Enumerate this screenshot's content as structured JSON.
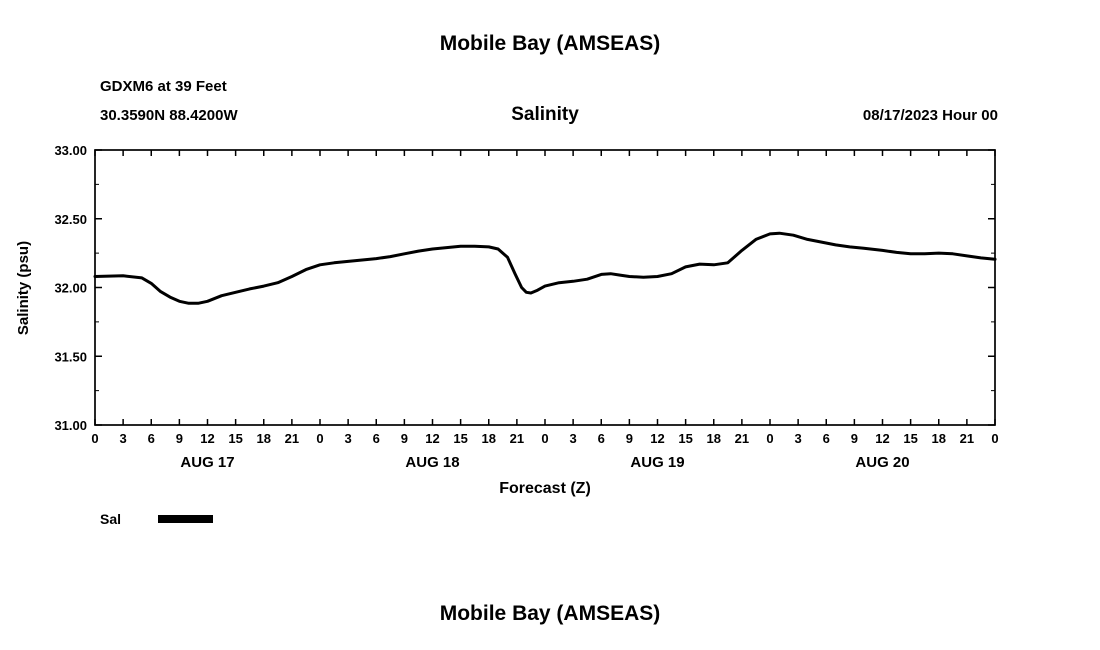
{
  "page": {
    "title_top": "Mobile Bay (AMSEAS)",
    "title_bottom": "Mobile Bay (AMSEAS)"
  },
  "station": {
    "name_line": "GDXM6 at 39 Feet",
    "coords_line": "30.3590N  88.4200W"
  },
  "chart_header": {
    "subtitle": "Salinity",
    "datetime": "08/17/2023 Hour 00"
  },
  "chart_data": {
    "type": "line",
    "title": "Salinity",
    "xlabel": "Forecast (Z)",
    "ylabel": "Salinity (psu)",
    "xlim": [
      0,
      96
    ],
    "ylim": [
      31.0,
      33.0
    ],
    "grid": false,
    "legend_position": "bottom-left",
    "xtick_step": 3,
    "xtick_label_mod": 24,
    "yticks": {
      "values": [
        31.0,
        31.5,
        32.0,
        32.5,
        33.0
      ],
      "labels": [
        "31.00",
        "31.50",
        "32.00",
        "32.50",
        "33.00"
      ]
    },
    "ytick_minor_values": [
      31.25,
      31.75,
      32.25,
      32.75
    ],
    "day_labels": [
      {
        "label": "AUG 17",
        "hour": 12
      },
      {
        "label": "AUG 18",
        "hour": 36
      },
      {
        "label": "AUG 19",
        "hour": 60
      },
      {
        "label": "AUG 20",
        "hour": 84
      }
    ],
    "legend": {
      "label": "Sal",
      "color": "#000000",
      "line_thickness": 8
    },
    "series": [
      {
        "name": "Sal",
        "color": "#000000",
        "points": [
          [
            0,
            32.08
          ],
          [
            3,
            32.085
          ],
          [
            5,
            32.07
          ],
          [
            6,
            32.03
          ],
          [
            7,
            31.97
          ],
          [
            8,
            31.93
          ],
          [
            9,
            31.9
          ],
          [
            10,
            31.885
          ],
          [
            11,
            31.885
          ],
          [
            12,
            31.9
          ],
          [
            13.5,
            31.94
          ],
          [
            15,
            31.965
          ],
          [
            16.5,
            31.99
          ],
          [
            18,
            32.01
          ],
          [
            19.5,
            32.035
          ],
          [
            21,
            32.08
          ],
          [
            22.5,
            32.13
          ],
          [
            24,
            32.165
          ],
          [
            25.5,
            32.18
          ],
          [
            27,
            32.19
          ],
          [
            28.5,
            32.2
          ],
          [
            30,
            32.21
          ],
          [
            31.5,
            32.225
          ],
          [
            33,
            32.245
          ],
          [
            34.5,
            32.265
          ],
          [
            36,
            32.28
          ],
          [
            37.5,
            32.29
          ],
          [
            39,
            32.3
          ],
          [
            40.5,
            32.3
          ],
          [
            42,
            32.295
          ],
          [
            43,
            32.28
          ],
          [
            44,
            32.22
          ],
          [
            44.8,
            32.1
          ],
          [
            45.5,
            32.0
          ],
          [
            46,
            31.965
          ],
          [
            46.5,
            31.96
          ],
          [
            47.2,
            31.98
          ],
          [
            48,
            32.01
          ],
          [
            49.5,
            32.035
          ],
          [
            51,
            32.045
          ],
          [
            52.5,
            32.06
          ],
          [
            54,
            32.095
          ],
          [
            55,
            32.1
          ],
          [
            56,
            32.09
          ],
          [
            57,
            32.08
          ],
          [
            58.5,
            32.075
          ],
          [
            60,
            32.08
          ],
          [
            61.5,
            32.1
          ],
          [
            63,
            32.15
          ],
          [
            64.5,
            32.17
          ],
          [
            66,
            32.165
          ],
          [
            67.5,
            32.18
          ],
          [
            69,
            32.27
          ],
          [
            70.5,
            32.35
          ],
          [
            72,
            32.39
          ],
          [
            73,
            32.395
          ],
          [
            74.5,
            32.38
          ],
          [
            76,
            32.35
          ],
          [
            77.5,
            32.33
          ],
          [
            79,
            32.31
          ],
          [
            80.5,
            32.295
          ],
          [
            82,
            32.285
          ],
          [
            84,
            32.27
          ],
          [
            85.5,
            32.255
          ],
          [
            87,
            32.245
          ],
          [
            88.5,
            32.245
          ],
          [
            90,
            32.25
          ],
          [
            91.5,
            32.245
          ],
          [
            93,
            32.23
          ],
          [
            94.5,
            32.215
          ],
          [
            96,
            32.205
          ]
        ]
      }
    ]
  }
}
